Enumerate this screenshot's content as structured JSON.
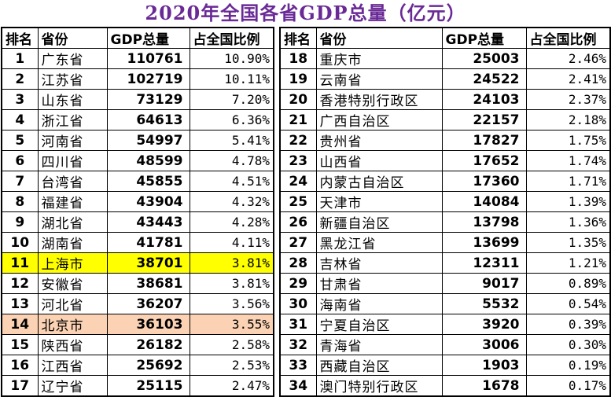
{
  "title": "2020年全国各省GDP总量（亿元）",
  "columns": [
    "排名",
    "省份",
    "GDP总量",
    "占全国比例"
  ],
  "left_rows": [
    {
      "rank": "1",
      "province": "广东省",
      "gdp": "110761",
      "pct": "10.90%"
    },
    {
      "rank": "2",
      "province": "江苏省",
      "gdp": "102719",
      "pct": "10.11%"
    },
    {
      "rank": "3",
      "province": "山东省",
      "gdp": "73129",
      "pct": "7.20%"
    },
    {
      "rank": "4",
      "province": "浙江省",
      "gdp": "64613",
      "pct": "6.36%"
    },
    {
      "rank": "5",
      "province": "河南省",
      "gdp": "54997",
      "pct": "5.41%"
    },
    {
      "rank": "6",
      "province": "四川省",
      "gdp": "48599",
      "pct": "4.78%"
    },
    {
      "rank": "7",
      "province": "台湾省",
      "gdp": "45855",
      "pct": "4.51%"
    },
    {
      "rank": "8",
      "province": "福建省",
      "gdp": "43904",
      "pct": "4.32%"
    },
    {
      "rank": "9",
      "province": "湖北省",
      "gdp": "43443",
      "pct": "4.28%"
    },
    {
      "rank": "10",
      "province": "湖南省",
      "gdp": "41781",
      "pct": "4.11%"
    },
    {
      "rank": "11",
      "province": "上海市",
      "gdp": "38701",
      "pct": "3.81%",
      "highlight": "#ffff00"
    },
    {
      "rank": "12",
      "province": "安徽省",
      "gdp": "38681",
      "pct": "3.81%"
    },
    {
      "rank": "13",
      "province": "河北省",
      "gdp": "36207",
      "pct": "3.56%"
    },
    {
      "rank": "14",
      "province": "北京市",
      "gdp": "36103",
      "pct": "3.55%",
      "highlight": "#fbd3b4"
    },
    {
      "rank": "15",
      "province": "陕西省",
      "gdp": "26182",
      "pct": "2.58%"
    },
    {
      "rank": "16",
      "province": "江西省",
      "gdp": "25692",
      "pct": "2.53%"
    },
    {
      "rank": "17",
      "province": "辽宁省",
      "gdp": "25115",
      "pct": "2.47%"
    }
  ],
  "right_rows": [
    {
      "rank": "18",
      "province": "重庆市",
      "gdp": "25003",
      "pct": "2.46%"
    },
    {
      "rank": "19",
      "province": "云南省",
      "gdp": "24522",
      "pct": "2.41%"
    },
    {
      "rank": "20",
      "province": "香港特别行政区",
      "gdp": "24103",
      "pct": "2.37%"
    },
    {
      "rank": "21",
      "province": "广西自治区",
      "gdp": "22157",
      "pct": "2.18%"
    },
    {
      "rank": "22",
      "province": "贵州省",
      "gdp": "17827",
      "pct": "1.75%"
    },
    {
      "rank": "23",
      "province": "山西省",
      "gdp": "17652",
      "pct": "1.74%"
    },
    {
      "rank": "24",
      "province": "内蒙古自治区",
      "gdp": "17360",
      "pct": "1.71%"
    },
    {
      "rank": "25",
      "province": "天津市",
      "gdp": "14084",
      "pct": "1.39%"
    },
    {
      "rank": "26",
      "province": "新疆自治区",
      "gdp": "13798",
      "pct": "1.36%"
    },
    {
      "rank": "27",
      "province": "黑龙江省",
      "gdp": "13699",
      "pct": "1.35%"
    },
    {
      "rank": "28",
      "province": "吉林省",
      "gdp": "12311",
      "pct": "1.21%"
    },
    {
      "rank": "29",
      "province": "甘肃省",
      "gdp": "9017",
      "pct": "0.89%"
    },
    {
      "rank": "30",
      "province": "海南省",
      "gdp": "5532",
      "pct": "0.54%"
    },
    {
      "rank": "31",
      "province": "宁夏自治区",
      "gdp": "3920",
      "pct": "0.39%"
    },
    {
      "rank": "32",
      "province": "青海省",
      "gdp": "3006",
      "pct": "0.30%"
    },
    {
      "rank": "33",
      "province": "西藏自治区",
      "gdp": "1903",
      "pct": "0.19%"
    },
    {
      "rank": "34",
      "province": "澳门特别行政区",
      "gdp": "1678",
      "pct": "0.17%"
    }
  ],
  "colors": {
    "title": "#6a2a96",
    "highlight_yellow": "#ffff00",
    "highlight_peach": "#fbd3b4"
  }
}
